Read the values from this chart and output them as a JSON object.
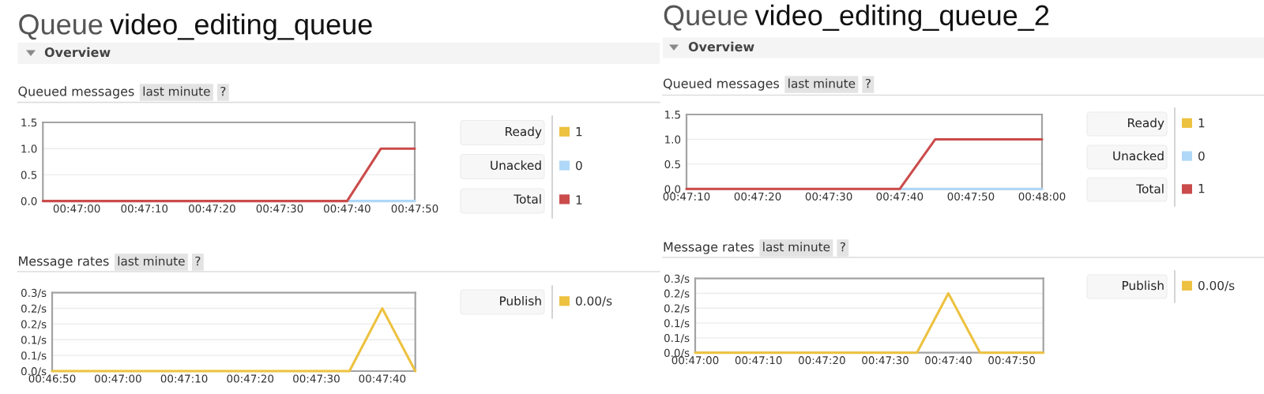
{
  "chart_data": [
    {
      "type": "line",
      "title": "Queued messages",
      "annotations": [
        "Queue",
        "video_editing_queue",
        "Overview",
        "last minute",
        "?",
        "1",
        "0",
        "1"
      ],
      "x": [
        0.78194,
        0.78333,
        0.78472,
        0.78611,
        0.7875,
        0.78889,
        0.79028,
        0.79167,
        0.79306,
        0.79444,
        0.79583,
        0.79722
      ],
      "series": [
        {
          "name": "Ready",
          "color": "#edc240",
          "values": [
            null,
            null,
            null,
            null,
            null,
            null,
            null,
            null,
            null,
            null,
            null,
            null
          ]
        },
        {
          "name": "Unacked",
          "color": "#afd8f8",
          "values": [
            null,
            null,
            null,
            null,
            null,
            null,
            null,
            null,
            null,
            0,
            0,
            0
          ]
        },
        {
          "name": "Total",
          "color": "#cb4b4b",
          "values": [
            0,
            0,
            0,
            0,
            0,
            0,
            0,
            0,
            0,
            0,
            1,
            1
          ]
        }
      ],
      "xlim": [
        0.78194,
        0.79722
      ],
      "xticks": [
        {
          "value": 0.78333,
          "label": "00:47:00"
        },
        {
          "value": 0.78611,
          "label": "00:47:10"
        },
        {
          "value": 0.78889,
          "label": "00:47:20"
        },
        {
          "value": 0.79167,
          "label": "00:47:30"
        },
        {
          "value": 0.79444,
          "label": "00:47:40"
        },
        {
          "value": 0.79722,
          "label": "00:47:50"
        }
      ],
      "ylim": [
        0,
        1.5
      ],
      "yticks": [
        {
          "value": 0,
          "label": "0.0"
        },
        {
          "value": 0.5,
          "label": "0.5"
        },
        {
          "value": 1,
          "label": "1.0"
        },
        {
          "value": 1.5,
          "label": "1.5"
        }
      ],
      "grid": "y",
      "legend": "right"
    },
    {
      "type": "line",
      "title": "Message rates",
      "annotations": [
        "last minute",
        "?",
        "0.00/s"
      ],
      "x": [
        0.78056,
        0.78194,
        0.78333,
        0.78472,
        0.78611,
        0.7875,
        0.78889,
        0.79028,
        0.79167,
        0.79306,
        0.79444,
        0.79583
      ],
      "series": [
        {
          "name": "Publish",
          "color": "#edc240",
          "values": [
            0,
            0,
            0,
            0,
            0,
            0,
            0,
            0,
            0,
            0,
            0.2,
            0
          ]
        }
      ],
      "xlim": [
        0.78056,
        0.79583
      ],
      "xticks": [
        {
          "value": 0.78056,
          "label": "00:46:50"
        },
        {
          "value": 0.78333,
          "label": "00:47:00"
        },
        {
          "value": 0.78611,
          "label": "00:47:10"
        },
        {
          "value": 0.78889,
          "label": "00:47:20"
        },
        {
          "value": 0.79167,
          "label": "00:47:30"
        },
        {
          "value": 0.79444,
          "label": "00:47:40"
        }
      ],
      "ylim": [
        0,
        0.25
      ],
      "yticks": [
        {
          "value": 0,
          "label": "0.0/s"
        },
        {
          "value": 0.05,
          "label": "0.1/s"
        },
        {
          "value": 0.1,
          "label": "0.1/s"
        },
        {
          "value": 0.15,
          "label": "0.2/s"
        },
        {
          "value": 0.2,
          "label": "0.2/s"
        },
        {
          "value": 0.25,
          "label": "0.3/s"
        }
      ],
      "grid": "y",
      "legend": "right"
    },
    {
      "type": "line",
      "title": "Queued messages",
      "annotations": [
        "Queue",
        "video_editing_queue_2",
        "Overview",
        "last minute",
        "?",
        "1",
        "0",
        "1"
      ],
      "x": [
        0.78611,
        0.7875,
        0.78889,
        0.79028,
        0.79167,
        0.79306,
        0.79444,
        0.79583,
        0.79722,
        0.79861,
        0.8
      ],
      "series": [
        {
          "name": "Ready",
          "color": "#edc240",
          "values": [
            null,
            null,
            null,
            null,
            null,
            null,
            null,
            null,
            null,
            null,
            null
          ]
        },
        {
          "name": "Unacked",
          "color": "#afd8f8",
          "values": [
            null,
            null,
            null,
            null,
            null,
            null,
            0,
            0,
            0,
            0,
            0
          ]
        },
        {
          "name": "Total",
          "color": "#cb4b4b",
          "values": [
            0,
            0,
            0,
            0,
            0,
            0,
            0,
            1,
            1,
            1,
            1
          ]
        }
      ],
      "xlim": [
        0.78611,
        0.8
      ],
      "xticks": [
        {
          "value": 0.78611,
          "label": "00:47:10"
        },
        {
          "value": 0.78889,
          "label": "00:47:20"
        },
        {
          "value": 0.79167,
          "label": "00:47:30"
        },
        {
          "value": 0.79444,
          "label": "00:47:40"
        },
        {
          "value": 0.79722,
          "label": "00:47:50"
        },
        {
          "value": 0.8,
          "label": "00:48:00"
        }
      ],
      "ylim": [
        0,
        1.5
      ],
      "yticks": [
        {
          "value": 0,
          "label": "0.0"
        },
        {
          "value": 0.5,
          "label": "0.5"
        },
        {
          "value": 1,
          "label": "1.0"
        },
        {
          "value": 1.5,
          "label": "1.5"
        }
      ],
      "grid": "y",
      "legend": "right"
    },
    {
      "type": "line",
      "title": "Message rates",
      "annotations": [
        "last minute",
        "?",
        "0.00/s"
      ],
      "x": [
        0.78333,
        0.78472,
        0.78611,
        0.7875,
        0.78889,
        0.79028,
        0.79167,
        0.79306,
        0.79444,
        0.79583,
        0.79722,
        0.79861
      ],
      "series": [
        {
          "name": "Publish",
          "color": "#edc240",
          "values": [
            0,
            0,
            0,
            0,
            0,
            0,
            0,
            0,
            0.2,
            0,
            0,
            0
          ]
        }
      ],
      "xlim": [
        0.78333,
        0.79861
      ],
      "xticks": [
        {
          "value": 0.78333,
          "label": "00:47:00"
        },
        {
          "value": 0.78611,
          "label": "00:47:10"
        },
        {
          "value": 0.78889,
          "label": "00:47:20"
        },
        {
          "value": 0.79167,
          "label": "00:47:30"
        },
        {
          "value": 0.79444,
          "label": "00:47:40"
        },
        {
          "value": 0.79722,
          "label": "00:47:50"
        }
      ],
      "ylim": [
        0,
        0.25
      ],
      "yticks": [
        {
          "value": 0,
          "label": "0.0/s"
        },
        {
          "value": 0.05,
          "label": "0.1/s"
        },
        {
          "value": 0.1,
          "label": "0.1/s"
        },
        {
          "value": 0.15,
          "label": "0.2/s"
        },
        {
          "value": 0.2,
          "label": "0.2/s"
        },
        {
          "value": 0.25,
          "label": "0.3/s"
        }
      ],
      "grid": "y",
      "legend": "right"
    }
  ]
}
